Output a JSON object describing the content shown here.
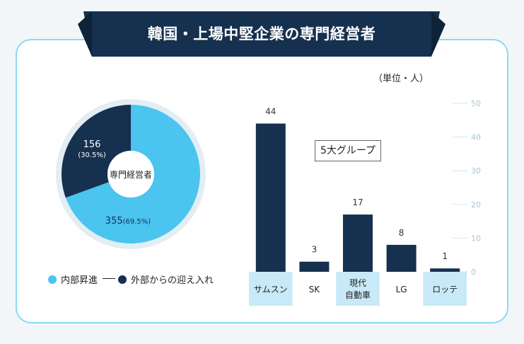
{
  "title": "韓国・上場中堅企業の専門経営者",
  "unit_label": "（単位・人）",
  "callout": "5大グループ",
  "colors": {
    "light": "#4bc4ef",
    "dark": "#16304f",
    "band": "#c8eaf8",
    "grid": "#d5e6ee"
  },
  "donut": {
    "center_label": "専門経営者",
    "inner": {
      "value": "355",
      "pct": "(69.5%)"
    },
    "outer": {
      "value": "156",
      "pct": "(30.5%)"
    }
  },
  "legend": {
    "internal": "内部昇進",
    "external": "外部からの迎え入れ"
  },
  "chart_data": [
    {
      "type": "pie",
      "categories": [
        "内部昇進",
        "外部からの迎え入れ"
      ],
      "values": [
        355,
        156
      ],
      "percent": [
        69.5,
        30.5
      ],
      "center_label": "専門経営者"
    },
    {
      "type": "bar",
      "title": "5大グループ",
      "categories": [
        "サムスン",
        "SK",
        "現代自動車",
        "LG",
        "ロッテ"
      ],
      "category_lines": [
        [
          "サムスン"
        ],
        [
          "SK"
        ],
        [
          "現代",
          "自動車"
        ],
        [
          "LG"
        ],
        [
          "ロッテ"
        ]
      ],
      "values": [
        44,
        3,
        17,
        8,
        1
      ],
      "ylim": [
        0,
        50
      ],
      "yticks": [
        0,
        10,
        20,
        30,
        40,
        50
      ]
    }
  ]
}
